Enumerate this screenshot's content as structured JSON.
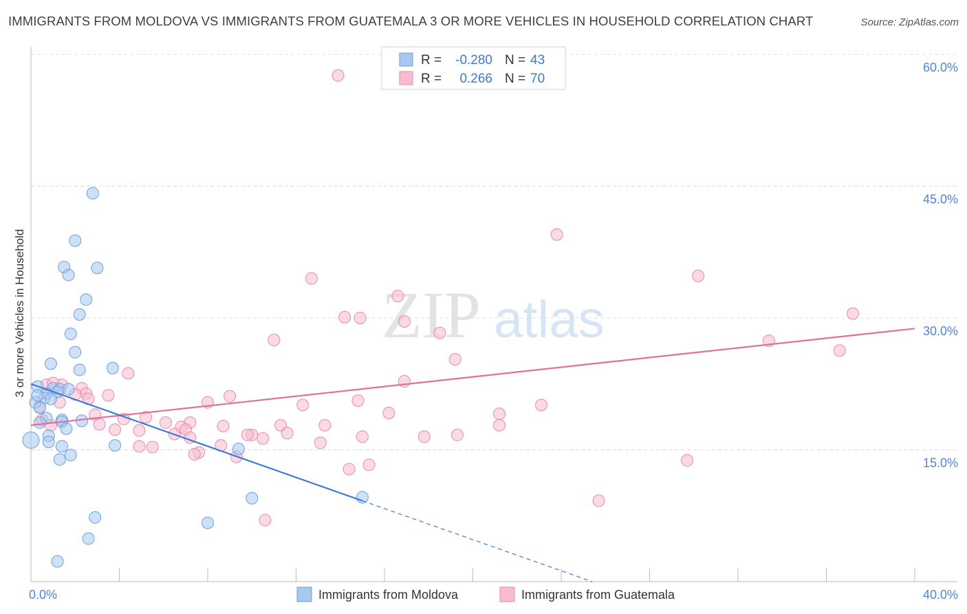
{
  "header": {
    "title": "IMMIGRANTS FROM MOLDOVA VS IMMIGRANTS FROM GUATEMALA 3 OR MORE VEHICLES IN HOUSEHOLD CORRELATION CHART",
    "source": "Source: ZipAtlas.com"
  },
  "watermark": {
    "zip": "ZIP",
    "atlas": "atlas"
  },
  "stats_legend": {
    "rows": [
      {
        "r_label": "R =",
        "r_value": "-0.280",
        "n_label": "N =",
        "n_value": "43"
      },
      {
        "r_label": "R =",
        "r_value": "0.266",
        "n_label": "N =",
        "n_value": "70"
      }
    ]
  },
  "colors": {
    "moldova_fill": "#a8c8f0",
    "moldova_stroke": "#6a9fe0",
    "moldova_line": "#3a78d4",
    "guatemala_fill": "#f7bcd0",
    "guatemala_stroke": "#e88aa8",
    "guatemala_line": "#e0709a",
    "tick_text": "#4f86d6",
    "grid": "#dcdcdc"
  },
  "chart_data": {
    "type": "scatter",
    "title": "IMMIGRANTS FROM MOLDOVA VS IMMIGRANTS FROM GUATEMALA 3 OR MORE VEHICLES IN HOUSEHOLD CORRELATION CHART",
    "xlabel": "",
    "ylabel": "3 or more Vehicles in Household",
    "xlim": [
      0,
      40
    ],
    "ylim": [
      0,
      60
    ],
    "x_tick_labels": [
      "0.0%",
      "40.0%"
    ],
    "y_ticks": [
      15,
      30,
      45,
      60
    ],
    "y_tick_labels": [
      "15.0%",
      "30.0%",
      "45.0%",
      "60.0%"
    ],
    "grid": true,
    "legend_position": "bottom",
    "series": [
      {
        "name": "Immigrants from Moldova",
        "color": "#a8c8f0",
        "r": "-0.280",
        "n": "43",
        "trend": {
          "x": [
            0.0,
            15.0
          ],
          "y": [
            22.5,
            9.2
          ],
          "dashed_to": [
            25.4,
            0.0
          ]
        },
        "points": [
          [
            2.8,
            44.2
          ],
          [
            2.0,
            38.8
          ],
          [
            1.5,
            35.8
          ],
          [
            3.0,
            35.7
          ],
          [
            1.7,
            34.9
          ],
          [
            2.5,
            32.1
          ],
          [
            2.2,
            30.4
          ],
          [
            1.8,
            28.2
          ],
          [
            2.0,
            26.1
          ],
          [
            0.9,
            24.8
          ],
          [
            3.7,
            24.3
          ],
          [
            2.2,
            24.1
          ],
          [
            0.3,
            22.2
          ],
          [
            1.0,
            22.0
          ],
          [
            1.3,
            21.9
          ],
          [
            1.7,
            21.9
          ],
          [
            0.7,
            21.4
          ],
          [
            1.2,
            21.6
          ],
          [
            0.6,
            20.9
          ],
          [
            0.2,
            20.4
          ],
          [
            0.4,
            19.8
          ],
          [
            0.7,
            18.6
          ],
          [
            1.4,
            18.4
          ],
          [
            2.3,
            18.3
          ],
          [
            1.4,
            18.2
          ],
          [
            0.4,
            18.1
          ],
          [
            1.6,
            17.4
          ],
          [
            0.8,
            16.6
          ],
          [
            0.0,
            16.1
          ],
          [
            0.8,
            15.9
          ],
          [
            3.8,
            15.5
          ],
          [
            1.4,
            15.4
          ],
          [
            9.4,
            15.1
          ],
          [
            1.8,
            14.4
          ],
          [
            1.3,
            13.9
          ],
          [
            15.0,
            9.6
          ],
          [
            10.0,
            9.5
          ],
          [
            2.9,
            7.3
          ],
          [
            8.0,
            6.7
          ],
          [
            2.6,
            4.9
          ],
          [
            1.2,
            2.3
          ],
          [
            0.3,
            21.2
          ],
          [
            0.9,
            20.8
          ]
        ]
      },
      {
        "name": "Immigrants from Guatemala",
        "color": "#f7bcd0",
        "r": "0.266",
        "n": "70",
        "trend": {
          "x": [
            0.0,
            40.0
          ],
          "y": [
            17.8,
            28.8
          ]
        },
        "points": [
          [
            13.9,
            57.6
          ],
          [
            23.8,
            39.5
          ],
          [
            30.2,
            34.8
          ],
          [
            12.7,
            34.5
          ],
          [
            16.6,
            32.5
          ],
          [
            14.2,
            30.1
          ],
          [
            14.9,
            30.0
          ],
          [
            16.9,
            29.6
          ],
          [
            37.2,
            30.5
          ],
          [
            11.0,
            27.5
          ],
          [
            18.5,
            28.3
          ],
          [
            33.4,
            27.4
          ],
          [
            36.6,
            26.3
          ],
          [
            19.2,
            25.3
          ],
          [
            4.4,
            23.7
          ],
          [
            16.9,
            22.8
          ],
          [
            1.4,
            22.4
          ],
          [
            2.3,
            22.0
          ],
          [
            0.7,
            22.4
          ],
          [
            1.0,
            22.6
          ],
          [
            2.5,
            21.4
          ],
          [
            3.5,
            21.2
          ],
          [
            2.6,
            20.8
          ],
          [
            2.0,
            21.3
          ],
          [
            9.0,
            21.1
          ],
          [
            14.8,
            20.6
          ],
          [
            8.0,
            20.4
          ],
          [
            1.3,
            20.4
          ],
          [
            12.3,
            20.1
          ],
          [
            23.1,
            20.1
          ],
          [
            0.4,
            19.9
          ],
          [
            16.2,
            19.2
          ],
          [
            21.2,
            19.1
          ],
          [
            2.9,
            19.0
          ],
          [
            5.2,
            18.7
          ],
          [
            0.5,
            18.4
          ],
          [
            4.2,
            18.5
          ],
          [
            6.1,
            18.1
          ],
          [
            3.1,
            17.9
          ],
          [
            7.2,
            18.1
          ],
          [
            0.9,
            17.8
          ],
          [
            11.3,
            17.8
          ],
          [
            13.3,
            17.8
          ],
          [
            21.2,
            17.8
          ],
          [
            8.7,
            17.7
          ],
          [
            6.8,
            17.6
          ],
          [
            7.0,
            17.3
          ],
          [
            4.9,
            17.2
          ],
          [
            3.8,
            17.3
          ],
          [
            6.5,
            16.8
          ],
          [
            10.0,
            16.7
          ],
          [
            11.6,
            16.9
          ],
          [
            9.8,
            16.7
          ],
          [
            15.0,
            16.5
          ],
          [
            10.5,
            16.3
          ],
          [
            17.8,
            16.5
          ],
          [
            19.3,
            16.7
          ],
          [
            7.2,
            16.4
          ],
          [
            13.1,
            15.8
          ],
          [
            4.9,
            15.4
          ],
          [
            5.5,
            15.3
          ],
          [
            8.6,
            15.5
          ],
          [
            7.6,
            14.7
          ],
          [
            7.4,
            14.5
          ],
          [
            9.3,
            14.2
          ],
          [
            29.7,
            13.8
          ],
          [
            15.3,
            13.3
          ],
          [
            14.4,
            12.8
          ],
          [
            25.7,
            9.2
          ],
          [
            10.6,
            7.0
          ]
        ]
      }
    ]
  }
}
